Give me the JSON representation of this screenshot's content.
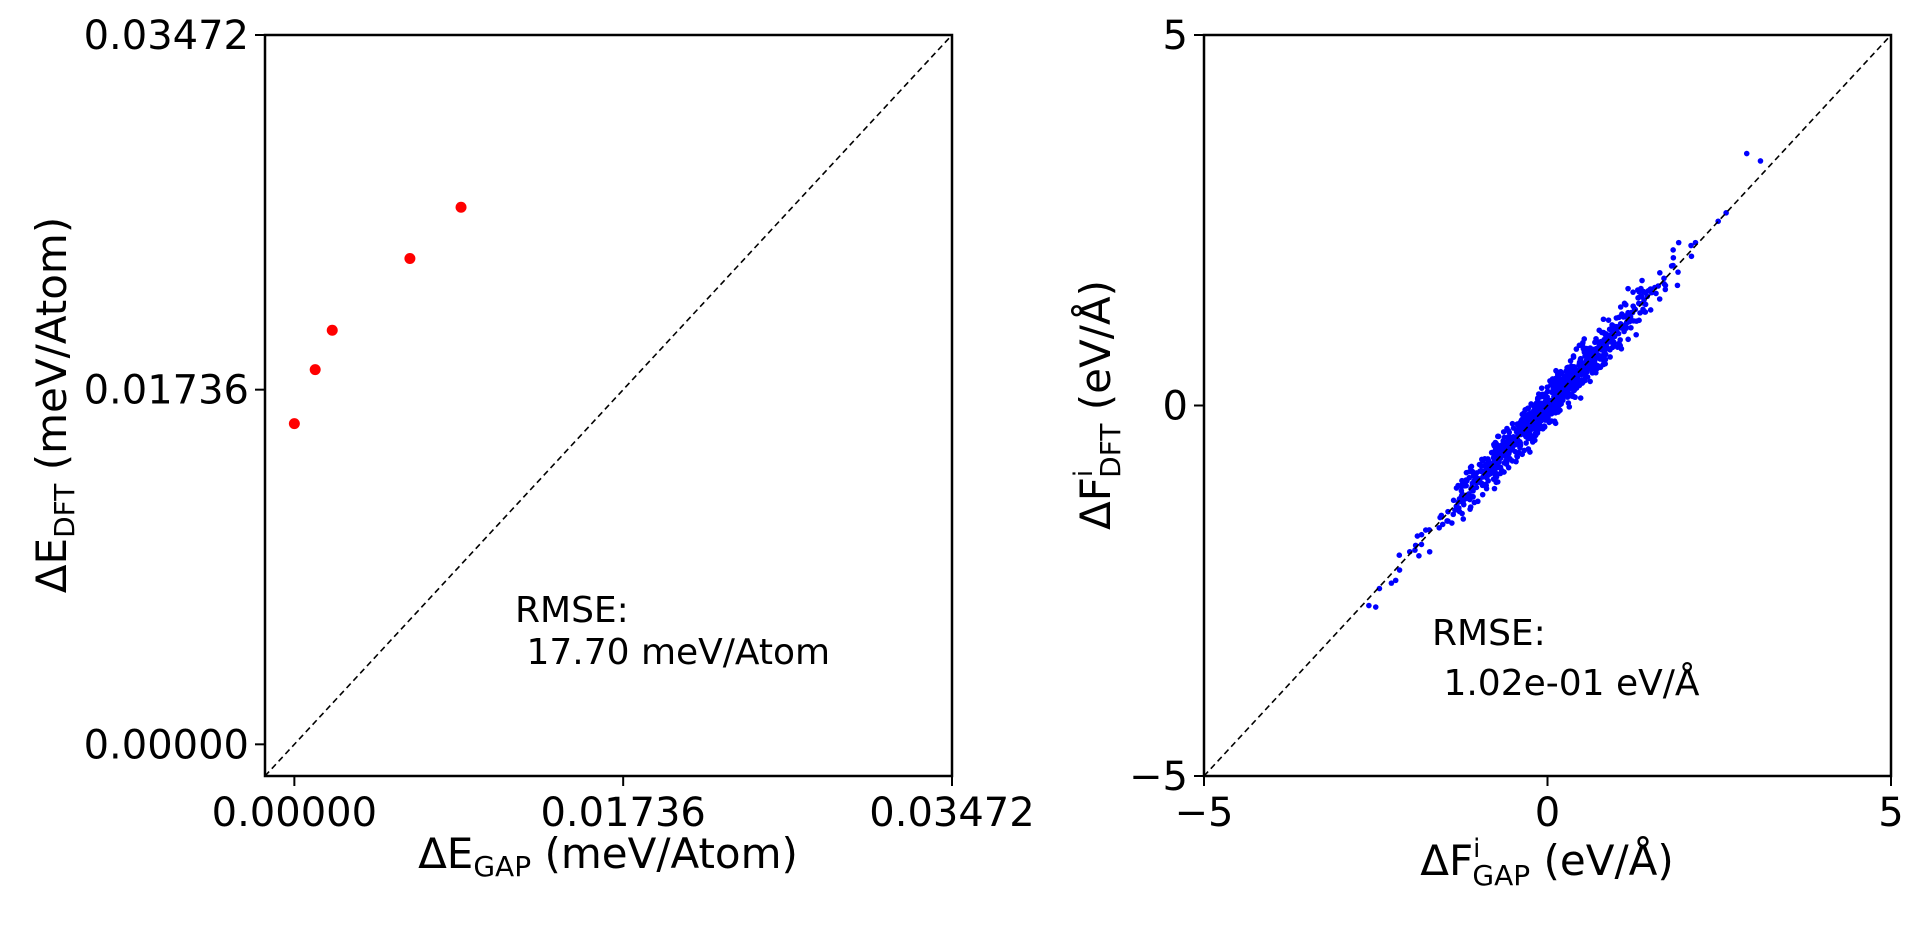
{
  "chart_data": [
    {
      "type": "scatter",
      "xlabel": {
        "main": "ΔE",
        "sub": "GAP",
        "rest": " (meV/Atom)"
      },
      "ylabel": {
        "main": "ΔE",
        "sub": "DFT",
        "rest": " (meV/Atom)"
      },
      "xlim": [
        -0.00155,
        0.03472
      ],
      "ylim": [
        -0.00155,
        0.03472
      ],
      "xticks": [
        0.0,
        0.01736,
        0.03472
      ],
      "yticks": [
        0.0,
        0.01736,
        0.03472
      ],
      "xtick_labels": [
        "0.00000",
        "0.01736",
        "0.03472"
      ],
      "ytick_labels": [
        "0.00000",
        "0.01736",
        "0.03472"
      ],
      "point_color": "#ff0000",
      "points": [
        {
          "x": 0.0,
          "y": 0.0157
        },
        {
          "x": 0.0011,
          "y": 0.01834
        },
        {
          "x": 0.002,
          "y": 0.02027
        },
        {
          "x": 0.0061,
          "y": 0.02378
        },
        {
          "x": 0.0088,
          "y": 0.02629
        }
      ],
      "annotation": {
        "line1": "RMSE:",
        "line2": " 17.70 meV/Atom"
      },
      "diagonal": true
    },
    {
      "type": "scatter",
      "xlabel": {
        "main": "ΔF",
        "sup": "i",
        "sub": "GAP",
        "rest": " (eV/Å)"
      },
      "ylabel": {
        "main": "ΔF",
        "sup": "i",
        "sub": "DFT",
        "rest": " (eV/Å)"
      },
      "xlim": [
        -5,
        5
      ],
      "ylim": [
        -5,
        5
      ],
      "xticks": [
        -5,
        0,
        5
      ],
      "yticks": [
        -5,
        0,
        5
      ],
      "xtick_labels": [
        "−5",
        "0",
        "5"
      ],
      "ytick_labels": [
        "−5",
        "0",
        "5"
      ],
      "point_color": "#0000ff",
      "cloud": {
        "count": 900,
        "x_min": -2.7,
        "x_max": 3.2,
        "noise_sd": 0.14,
        "seed": 7
      },
      "extreme_points": [
        {
          "x": -2.6,
          "y": -2.7
        },
        {
          "x": -2.5,
          "y": -2.72
        },
        {
          "x": 2.9,
          "y": 3.4
        },
        {
          "x": 3.1,
          "y": 3.3
        },
        {
          "x": 2.6,
          "y": 2.6
        },
        {
          "x": 1.9,
          "y": 1.8
        }
      ],
      "annotation": {
        "line1": "RMSE:",
        "line2": " 1.02e-01 eV/Å"
      },
      "diagonal": true
    }
  ]
}
